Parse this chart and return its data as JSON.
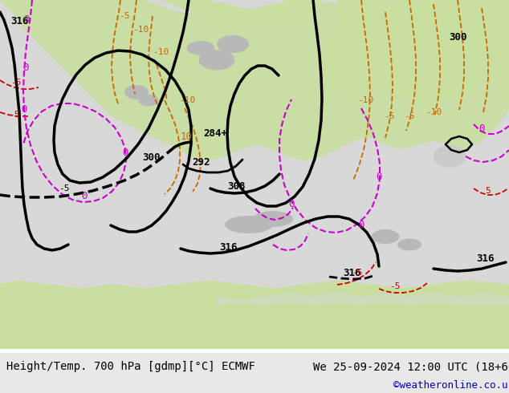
{
  "title_left": "Height/Temp. 700 hPa [gdmp][°C] ECMWF",
  "title_right": "We 25-09-2024 12:00 UTC (18+66)",
  "credit": "©weatheronline.co.uk",
  "bg_color": "#ffffff",
  "map_bg_green": "#c8dfa0",
  "map_bg_gray": "#c8c8c8",
  "map_bg_white": "#e8e8e8",
  "contour_black": "#000000",
  "contour_orange": "#cc6600",
  "contour_red": "#cc0000",
  "contour_magenta": "#cc00cc",
  "footer_bg": "#e8e8e8",
  "footer_text": "#000000",
  "credit_color": "#0000bb",
  "font_size_title": 10,
  "font_size_credit": 9
}
